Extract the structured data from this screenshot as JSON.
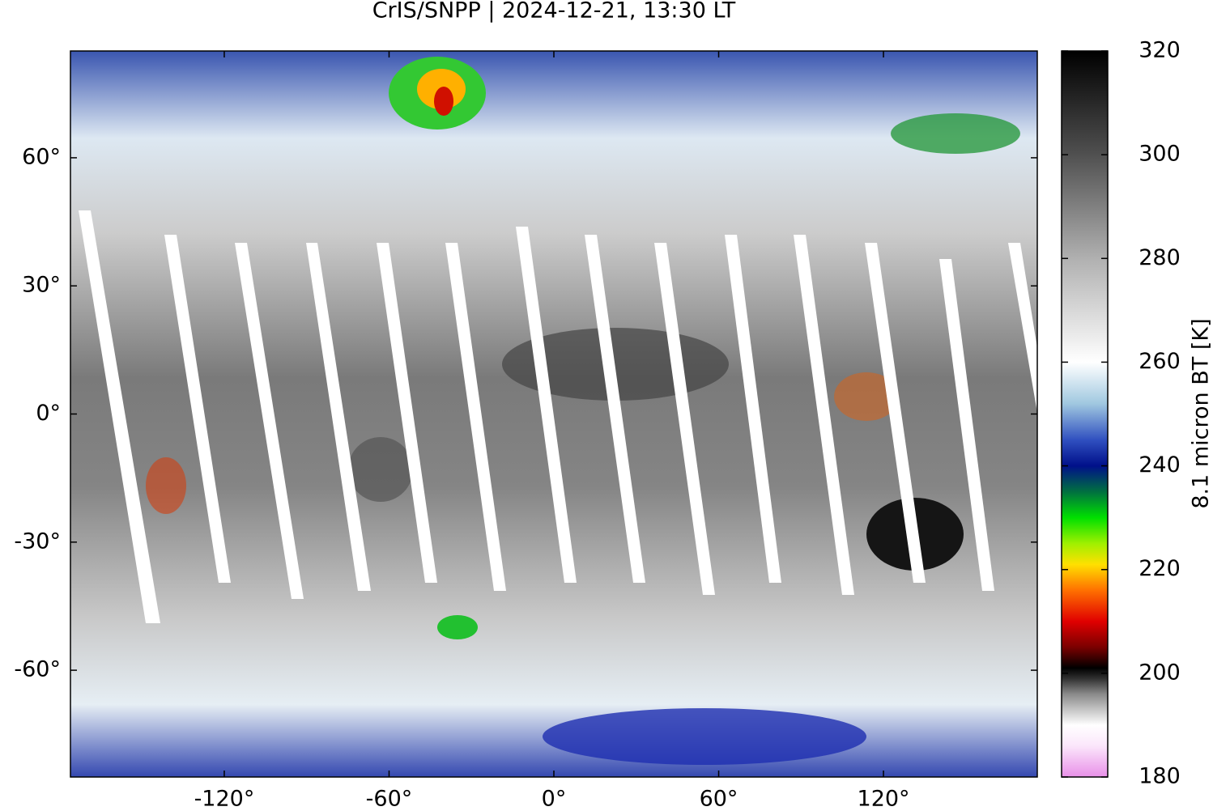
{
  "chart_data": {
    "type": "map",
    "title": "CrIS/SNPP | 2024-12-21, 13:30 LT",
    "xlim": [
      -176,
      176
    ],
    "ylim": [
      -85,
      85
    ],
    "xticks": [
      {
        "value": -120,
        "label": "-120°"
      },
      {
        "value": -60,
        "label": "-60°"
      },
      {
        "value": 0,
        "label": "0°"
      },
      {
        "value": 60,
        "label": "60°"
      },
      {
        "value": 120,
        "label": "120°"
      }
    ],
    "yticks": [
      {
        "value": 60,
        "label": "60°"
      },
      {
        "value": 30,
        "label": "30°"
      },
      {
        "value": 0,
        "label": "0°"
      },
      {
        "value": -30,
        "label": "-30°"
      },
      {
        "value": -60,
        "label": "-60°"
      }
    ],
    "colorbar": {
      "label": "8.1 micron BT [K]",
      "lim": [
        180,
        320
      ],
      "ticks": [
        180,
        200,
        220,
        240,
        260,
        280,
        300,
        320
      ],
      "colormap": [
        {
          "value": 180,
          "color": "#e890e8"
        },
        {
          "value": 186,
          "color": "#fbe6fb"
        },
        {
          "value": 190,
          "color": "#ffffff"
        },
        {
          "value": 196,
          "color": "#8a8a8a"
        },
        {
          "value": 199,
          "color": "#303030"
        },
        {
          "value": 201,
          "color": "#000000"
        },
        {
          "value": 205,
          "color": "#7a0000"
        },
        {
          "value": 210,
          "color": "#e00000"
        },
        {
          "value": 216,
          "color": "#ff7000"
        },
        {
          "value": 221,
          "color": "#ffe000"
        },
        {
          "value": 225,
          "color": "#a0f000"
        },
        {
          "value": 230,
          "color": "#00e000"
        },
        {
          "value": 235,
          "color": "#007040"
        },
        {
          "value": 240,
          "color": "#00108a"
        },
        {
          "value": 245,
          "color": "#3050c0"
        },
        {
          "value": 252,
          "color": "#a0c8e0"
        },
        {
          "value": 260,
          "color": "#ffffff"
        },
        {
          "value": 280,
          "color": "#b0b0b0"
        },
        {
          "value": 300,
          "color": "#505050"
        },
        {
          "value": 320,
          "color": "#000000"
        }
      ]
    }
  }
}
